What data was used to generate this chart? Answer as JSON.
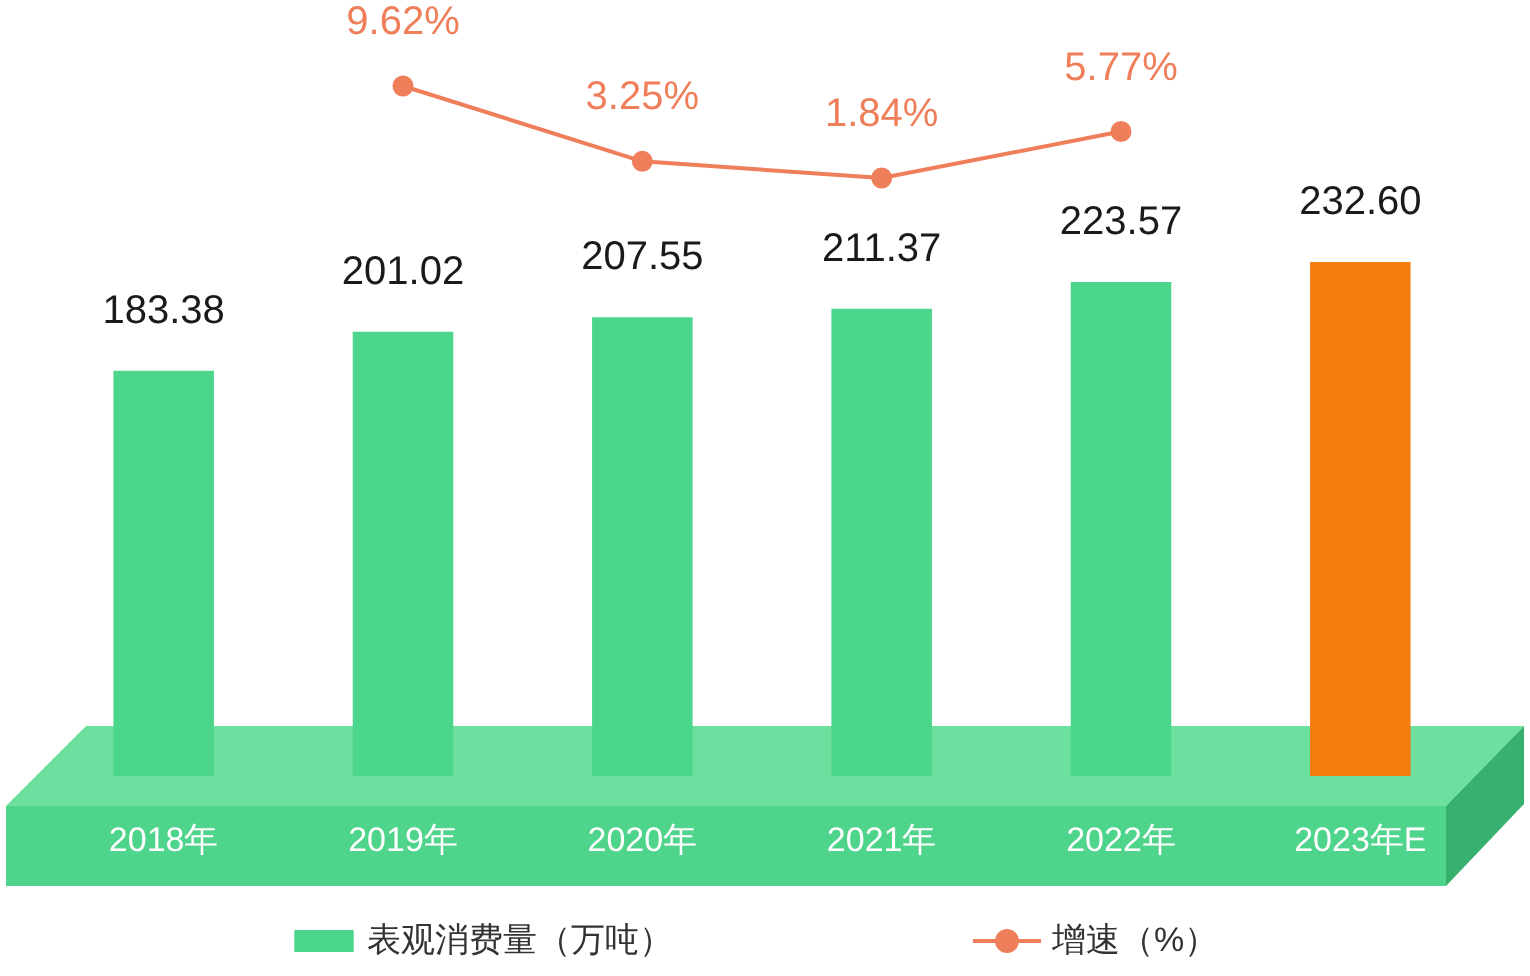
{
  "chart_data": [
    {
      "type": "bar",
      "categories": [
        "2018年",
        "2019年",
        "2020年",
        "2021年",
        "2022年",
        "2023年E"
      ],
      "series": [
        {
          "name": "表观消费量（万吨）",
          "color": "#4bd68b",
          "colors": [
            "#4bd68b",
            "#4bd68b",
            "#4bd68b",
            "#4bd68b",
            "#4bd68b",
            "#f57c0e"
          ],
          "values": [
            183.38,
            201.02,
            207.55,
            211.37,
            223.57,
            232.6
          ],
          "value_labels": [
            "183.38",
            "201.02",
            "207.55",
            "211.37",
            "223.57",
            "232.60"
          ]
        }
      ],
      "tick_labels": "x",
      "legend": "bottom",
      "grid": false
    },
    {
      "type": "line",
      "categories": [
        null,
        null,
        null,
        null,
        null,
        null
      ],
      "series": [
        {
          "name": "增速（%）",
          "color": "#ef7f5a",
          "values": [
            null,
            9.62,
            3.25,
            1.84,
            5.77,
            null
          ],
          "value_labels": [
            null,
            "9.62%",
            "3.25%",
            "1.84%",
            "5.77%",
            null
          ]
        }
      ],
      "tick_labels": false,
      "legend": "bottom",
      "marker": "circle",
      "grid": false
    }
  ]
}
